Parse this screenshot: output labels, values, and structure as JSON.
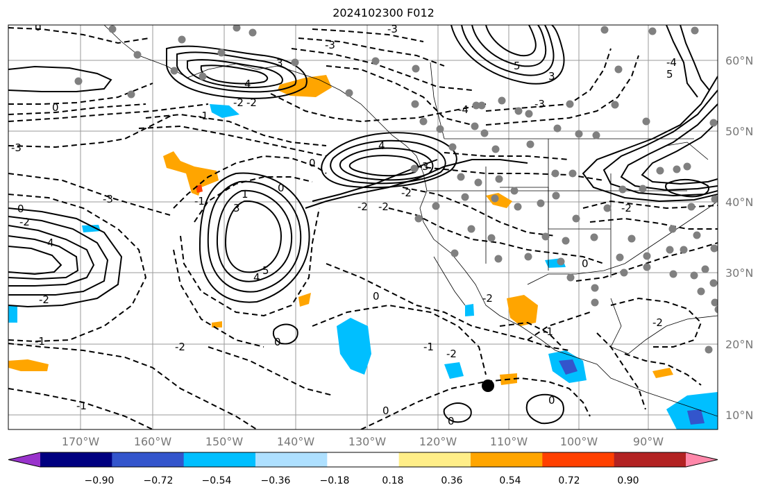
{
  "title": "2024102300 F012",
  "latitude_labels": [
    "60°N",
    "50°N",
    "40°N",
    "30°N",
    "20°N",
    "10°N"
  ],
  "longitude_labels": [
    "170°W",
    "160°W",
    "150°W",
    "140°W",
    "130°W",
    "120°W",
    "110°W",
    "100°W",
    "90°W"
  ],
  "colorbar": {
    "tick_labels": [
      "−0.90",
      "−0.72",
      "−0.54",
      "−0.36",
      "−0.18",
      "0.18",
      "0.36",
      "0.54",
      "0.72",
      "0.90"
    ],
    "colors": [
      "#9933cc",
      "#000080",
      "#3355cc",
      "#00bfff",
      "#aee0ff",
      "#ffffff",
      "#ffee88",
      "#ffa500",
      "#ff4000",
      "#b22222",
      "#ff88aa"
    ]
  },
  "contour_labels": [
    "0",
    "-3",
    "3",
    "-3",
    "5",
    "3",
    "4",
    "-2",
    "-2",
    "-1",
    "-4",
    "-3",
    "-4",
    "5",
    "4",
    "3",
    "-2",
    "-2",
    "-2",
    "0",
    "-3",
    "0",
    "1",
    "3",
    "-3",
    "4",
    "-2",
    "-1",
    "4",
    "5",
    "0",
    "-1",
    "-2",
    "0",
    "0",
    "-1",
    "-2",
    "-1",
    "-2",
    "0",
    "0",
    "-2",
    "-1",
    "0",
    "0",
    "-2",
    "-2",
    "0"
  ],
  "markers": {
    "large_black_dot": "black-dot"
  },
  "colors": {
    "grid": "#9a9a9a",
    "coast": "#000000",
    "station": "#808080",
    "positive": "#ffa500",
    "negative": "#00bfff"
  }
}
